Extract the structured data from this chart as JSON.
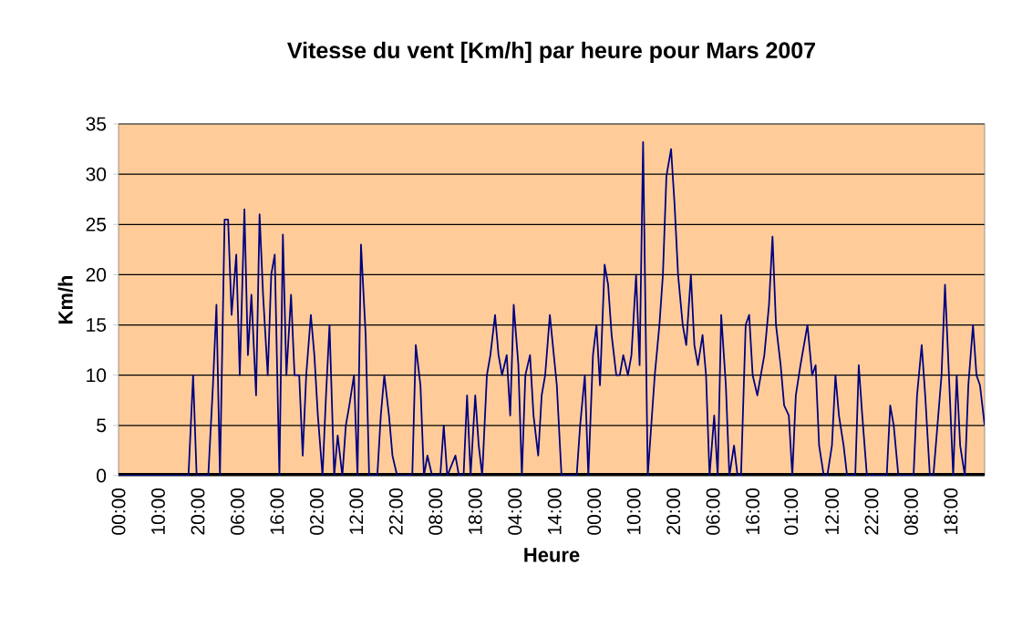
{
  "chart_data": {
    "type": "line",
    "title": "Vitesse du vent [Km/h] par heure pour Mars 2007",
    "xlabel": "Heure",
    "ylabel": "Km/h",
    "x": [
      "2007-03-01T00:00",
      "2007-03-03T12:00",
      "2007-03-03T16:00",
      "2007-03-03T19:00",
      "2007-03-04T05:00",
      "2007-03-04T09:00",
      "2007-03-04T12:00",
      "2007-03-04T15:00",
      "2007-03-04T19:00",
      "2007-03-04T22:00",
      "2007-03-05T01:00",
      "2007-03-05T05:00",
      "2007-03-05T08:00",
      "2007-03-05T12:00",
      "2007-03-05T15:00",
      "2007-03-05T18:00",
      "2007-03-05T22:00",
      "2007-03-06T01:00",
      "2007-03-06T04:00",
      "2007-03-06T08:00",
      "2007-03-06T11:00",
      "2007-03-06T14:00",
      "2007-03-06T18:00",
      "2007-03-06T21:00",
      "2007-03-07T00:00",
      "2007-03-07T04:00",
      "2007-03-07T07:00",
      "2007-03-07T11:00",
      "2007-03-07T14:00",
      "2007-03-07T17:00",
      "2007-03-07T21:00",
      "2007-03-08T00:00",
      "2007-03-08T03:00",
      "2007-03-08T07:00",
      "2007-03-08T10:00",
      "2007-03-08T13:00",
      "2007-03-08T17:00",
      "2007-03-08T20:00",
      "2007-03-09T00:00",
      "2007-03-09T03:00",
      "2007-03-09T06:00",
      "2007-03-09T10:00",
      "2007-03-09T13:00",
      "2007-03-09T16:00",
      "2007-03-09T20:00",
      "2007-03-09T23:00",
      "2007-03-10T06:00",
      "2007-03-10T09:00",
      "2007-03-10T12:00",
      "2007-03-10T16:00",
      "2007-03-10T19:00",
      "2007-03-10T23:00",
      "2007-03-11T12:00",
      "2007-03-11T15:00",
      "2007-03-11T19:00",
      "2007-03-11T22:00",
      "2007-03-12T01:00",
      "2007-03-12T05:00",
      "2007-03-12T12:00",
      "2007-03-12T15:00",
      "2007-03-12T18:00",
      "2007-03-13T01:00",
      "2007-03-13T04:00",
      "2007-03-13T08:00",
      "2007-03-13T11:00",
      "2007-03-13T14:00",
      "2007-03-13T18:00",
      "2007-03-13T21:00",
      "2007-03-14T00:00",
      "2007-03-14T04:00",
      "2007-03-14T07:00",
      "2007-03-14T11:00",
      "2007-03-14T14:00",
      "2007-03-14T17:00",
      "2007-03-14T21:00",
      "2007-03-15T00:00",
      "2007-03-15T03:00",
      "2007-03-15T07:00",
      "2007-03-15T10:00",
      "2007-03-15T13:00",
      "2007-03-15T17:00",
      "2007-03-15T20:00",
      "2007-03-16T00:00",
      "2007-03-16T03:00",
      "2007-03-16T06:00",
      "2007-03-16T10:00",
      "2007-03-16T16:00",
      "2007-03-16T20:00",
      "2007-03-17T09:00",
      "2007-03-17T12:00",
      "2007-03-17T16:00",
      "2007-03-17T19:00",
      "2007-03-17T23:00",
      "2007-03-18T02:00",
      "2007-03-18T05:00",
      "2007-03-18T09:00",
      "2007-03-18T12:00",
      "2007-03-18T15:00",
      "2007-03-18T19:00",
      "2007-03-18T22:00",
      "2007-03-19T01:00",
      "2007-03-19T05:00",
      "2007-03-19T08:00",
      "2007-03-19T12:00",
      "2007-03-19T15:00",
      "2007-03-19T18:00",
      "2007-03-19T22:00",
      "2007-03-20T01:00",
      "2007-03-20T04:00",
      "2007-03-20T08:00",
      "2007-03-20T11:00",
      "2007-03-20T14:00",
      "2007-03-20T18:00",
      "2007-03-20T21:00",
      "2007-03-21T00:00",
      "2007-03-21T04:00",
      "2007-03-21T07:00",
      "2007-03-21T11:00",
      "2007-03-21T14:00",
      "2007-03-21T17:00",
      "2007-03-21T21:00",
      "2007-03-22T00:00",
      "2007-03-22T03:00",
      "2007-03-22T07:00",
      "2007-03-22T10:00",
      "2007-03-22T13:00",
      "2007-03-22T17:00",
      "2007-03-22T20:00",
      "2007-03-23T00:00",
      "2007-03-23T03:00",
      "2007-03-23T06:00",
      "2007-03-23T10:00",
      "2007-03-23T13:00",
      "2007-03-23T16:00",
      "2007-03-23T20:00",
      "2007-03-23T23:00",
      "2007-03-24T02:00",
      "2007-03-24T06:00",
      "2007-03-24T09:00",
      "2007-03-24T12:00",
      "2007-03-24T16:00",
      "2007-03-24T19:00",
      "2007-03-24T23:00",
      "2007-03-25T02:00",
      "2007-03-25T05:00",
      "2007-03-25T09:00",
      "2007-03-25T15:00",
      "2007-03-25T19:00",
      "2007-03-25T22:00",
      "2007-03-26T01:00",
      "2007-03-26T05:00",
      "2007-03-26T08:00",
      "2007-03-26T12:00",
      "2007-03-26T15:00",
      "2007-03-26T18:00",
      "2007-03-26T22:00",
      "2007-03-27T01:00",
      "2007-03-27T08:00",
      "2007-03-27T11:00",
      "2007-03-27T14:00",
      "2007-03-27T18:00",
      "2007-03-28T11:00",
      "2007-03-28T14:00",
      "2007-03-28T17:00",
      "2007-03-28T21:00",
      "2007-03-29T10:00",
      "2007-03-29T13:00",
      "2007-03-29T17:00",
      "2007-03-29T20:00",
      "2007-03-30T00:00",
      "2007-03-30T03:00",
      "2007-03-30T10:00",
      "2007-03-30T13:00",
      "2007-03-30T16:00",
      "2007-03-30T20:00",
      "2007-03-30T23:00",
      "2007-03-31T02:00",
      "2007-03-31T06:00",
      "2007-03-31T09:00",
      "2007-03-31T13:00",
      "2007-03-31T16:00",
      "2007-03-31T19:00",
      "2007-03-31T23:00"
    ],
    "values": [
      0,
      0,
      10,
      0,
      0,
      9,
      17,
      0,
      25.5,
      25.5,
      16,
      22,
      10,
      26.5,
      12,
      18,
      8,
      26,
      18,
      10,
      20,
      22,
      0,
      24,
      10,
      18,
      10,
      10,
      2,
      10,
      16,
      12,
      6,
      0,
      8,
      15,
      0,
      4,
      0,
      5,
      7,
      10,
      0,
      23,
      14,
      0,
      0,
      6,
      10,
      6,
      2,
      0,
      0,
      13,
      9,
      0,
      2,
      0,
      0,
      5,
      0,
      2,
      0,
      0,
      8,
      0,
      8,
      3,
      0,
      10,
      12,
      16,
      12,
      10,
      12,
      6,
      17,
      11,
      0,
      10,
      12,
      6,
      2,
      8,
      10,
      16,
      9,
      0,
      0,
      5,
      10,
      0,
      12,
      15,
      9,
      21,
      19,
      14,
      10,
      10,
      12,
      10,
      12,
      20,
      11,
      33.2,
      0,
      5,
      10,
      15,
      20,
      29.8,
      32.5,
      27,
      20,
      15,
      13,
      20,
      13,
      11,
      14,
      10,
      0,
      6,
      0,
      16,
      9,
      0,
      3,
      0,
      0,
      15,
      16,
      10,
      8,
      10,
      12,
      17,
      23.8,
      15,
      11,
      7,
      6,
      0,
      8,
      11,
      15,
      10,
      11,
      3,
      0,
      0,
      3,
      10,
      6,
      3,
      0,
      0,
      11,
      6,
      0,
      0,
      7,
      5,
      0,
      0,
      8,
      13,
      8,
      0,
      0,
      10,
      19,
      11,
      0,
      10,
      3,
      0,
      9,
      15,
      10,
      9,
      5
    ],
    "color": "#000080",
    "xlim": [
      "2007-03-01T00:00",
      "2007-03-31T23:00"
    ],
    "xticks": [
      {
        "value": "2007-03-01T00:00",
        "label": "00:00"
      },
      {
        "value": "2007-03-02T10:00",
        "label": "10:00"
      },
      {
        "value": "2007-03-03T20:00",
        "label": "20:00"
      },
      {
        "value": "2007-03-05T06:00",
        "label": "06:00"
      },
      {
        "value": "2007-03-06T16:00",
        "label": "16:00"
      },
      {
        "value": "2007-03-08T02:00",
        "label": "02:00"
      },
      {
        "value": "2007-03-09T12:00",
        "label": "12:00"
      },
      {
        "value": "2007-03-10T22:00",
        "label": "22:00"
      },
      {
        "value": "2007-03-12T08:00",
        "label": "08:00"
      },
      {
        "value": "2007-03-13T18:00",
        "label": "18:00"
      },
      {
        "value": "2007-03-15T04:00",
        "label": "04:00"
      },
      {
        "value": "2007-03-16T14:00",
        "label": "14:00"
      },
      {
        "value": "2007-03-18T00:00",
        "label": "00:00"
      },
      {
        "value": "2007-03-19T10:00",
        "label": "10:00"
      },
      {
        "value": "2007-03-20T20:00",
        "label": "20:00"
      },
      {
        "value": "2007-03-22T06:00",
        "label": "06:00"
      },
      {
        "value": "2007-03-23T16:00",
        "label": "16:00"
      },
      {
        "value": "2007-03-25T01:00",
        "label": "01:00"
      },
      {
        "value": "2007-03-26T12:00",
        "label": "12:00"
      },
      {
        "value": "2007-03-27T22:00",
        "label": "22:00"
      },
      {
        "value": "2007-03-29T08:00",
        "label": "08:00"
      },
      {
        "value": "2007-03-30T18:00",
        "label": "18:00"
      }
    ],
    "ylim": [
      0,
      35
    ],
    "yticks": [
      0,
      5,
      10,
      15,
      20,
      25,
      30,
      35
    ],
    "grid": "y"
  }
}
